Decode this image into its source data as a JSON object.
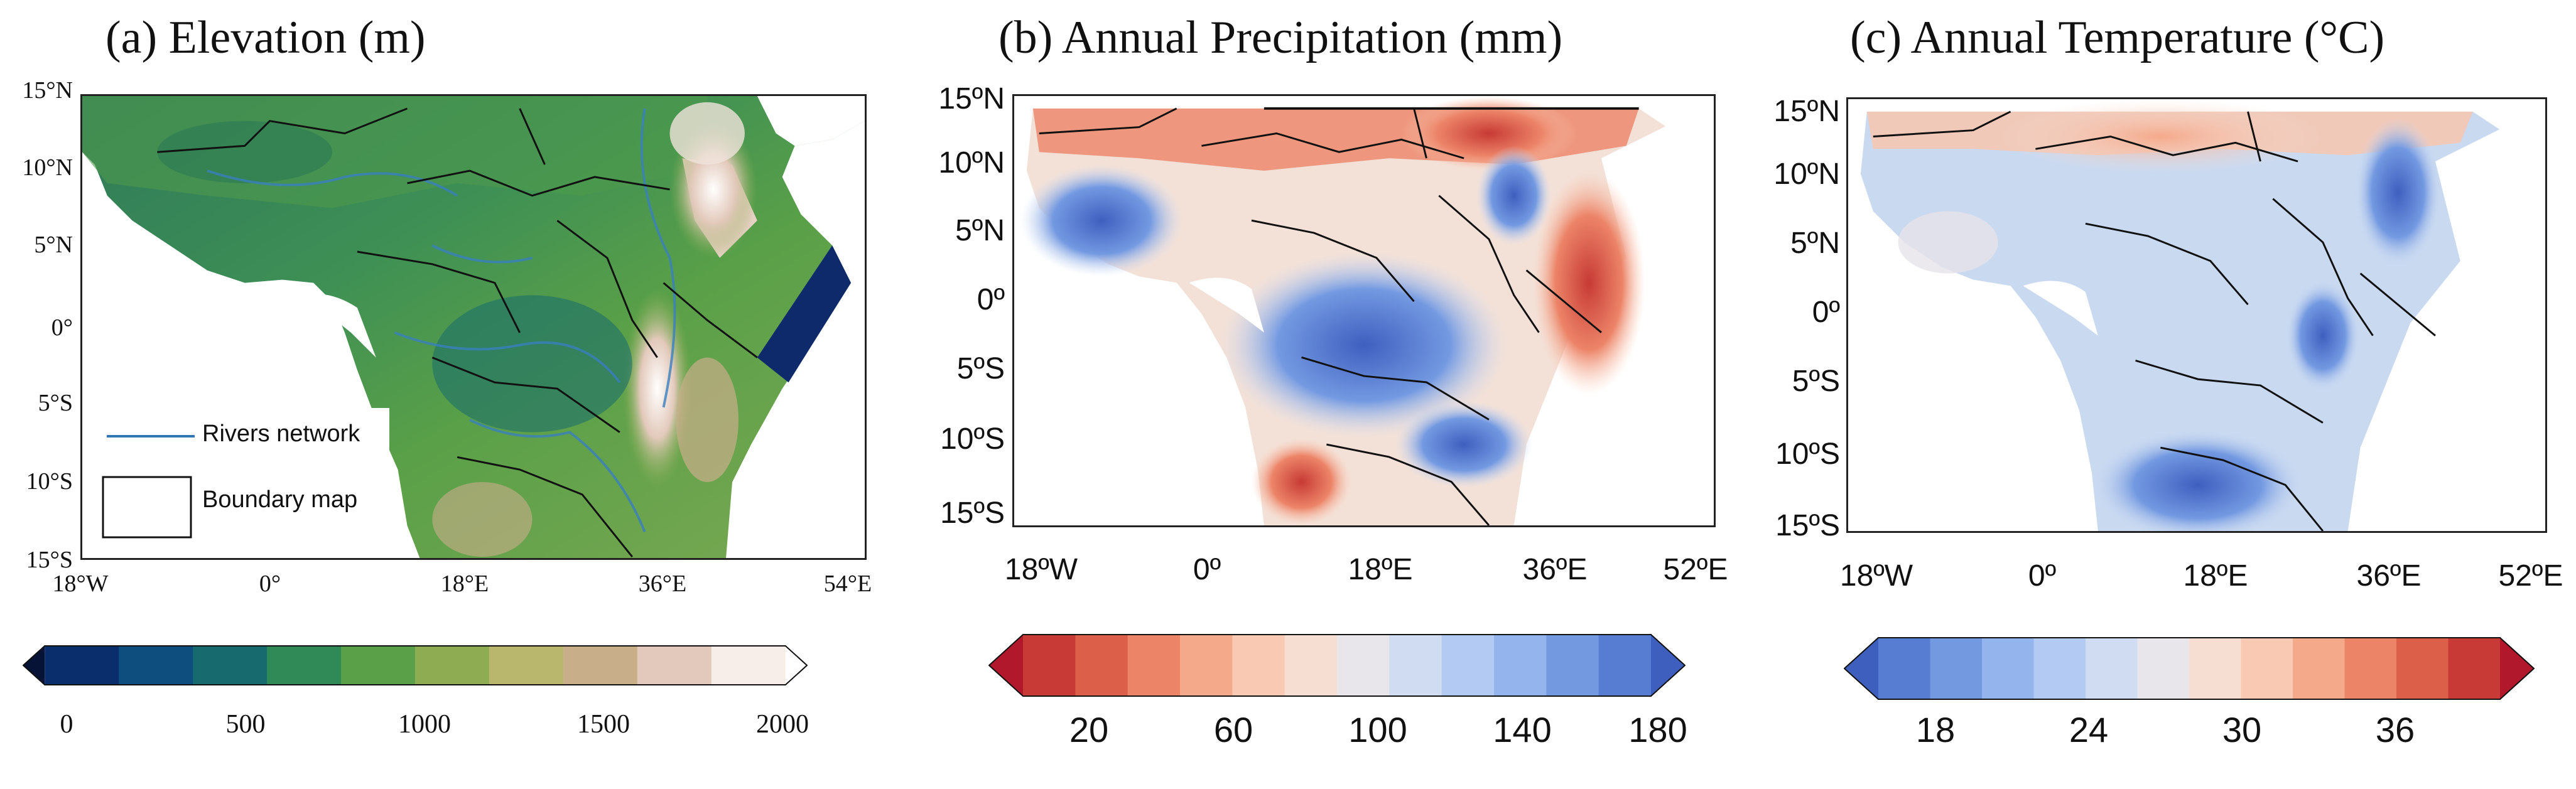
{
  "panels": {
    "a": {
      "title": "(a) Elevation  (m)",
      "y_labels": [
        "15°N",
        "10°N",
        "5°N",
        "0°",
        "5°S",
        "10°S",
        "15°S"
      ],
      "x_labels": [
        "18°W",
        "0°",
        "18°E",
        "36°E",
        "54°E"
      ],
      "legend": {
        "rivers": "Rivers network",
        "boundary": "Boundary map"
      },
      "colorbar": {
        "ticks": [
          "0",
          "500",
          "1000",
          "1500",
          "2000"
        ],
        "colors": [
          "#061337",
          "#0a2d6b",
          "#0e4e7e",
          "#176b6e",
          "#2f8a58",
          "#5aa048",
          "#8ead52",
          "#b9b76e",
          "#c9ae8a",
          "#e2c9bb",
          "#f7eeea",
          "#ffffff"
        ]
      }
    },
    "b": {
      "title": "(b) Annual  Precipitation  (mm)",
      "y_labels": [
        "15ºN",
        "10ºN",
        "5ºN",
        "0º",
        "5ºS",
        "10ºS",
        "15ºS"
      ],
      "x_labels": [
        "18ºW",
        "0º",
        "18ºE",
        "36ºE",
        "52ºE"
      ],
      "colorbar": {
        "ticks": [
          "20",
          "60",
          "100",
          "140",
          "180"
        ],
        "colors": [
          "#b2182b",
          "#c73a35",
          "#dc5f4a",
          "#ec8468",
          "#f5a98b",
          "#f9c9b3",
          "#f7ded2",
          "#e8e6ea",
          "#cfdcf2",
          "#b3cbf2",
          "#93b4ec",
          "#7399e1",
          "#577dd2",
          "#3f5fbf"
        ]
      }
    },
    "c": {
      "title": "(c) Annual  Temperature (°C)",
      "y_labels": [
        "15ºN",
        "10ºN",
        "5ºN",
        "0º",
        "5ºS",
        "10ºS",
        "15ºS"
      ],
      "x_labels": [
        "18ºW",
        "0º",
        "18ºE",
        "36ºE",
        "52ºE"
      ],
      "colorbar": {
        "ticks": [
          "18",
          "24",
          "30",
          "36"
        ],
        "colors": [
          "#3f5fbf",
          "#577dd2",
          "#7399e1",
          "#93b4ec",
          "#b3cbf2",
          "#cfdcf2",
          "#e8e6ea",
          "#f7ded2",
          "#f9c9b3",
          "#f5a98b",
          "#ec8468",
          "#dc5f4a",
          "#c73a35",
          "#b2182b"
        ]
      }
    }
  }
}
